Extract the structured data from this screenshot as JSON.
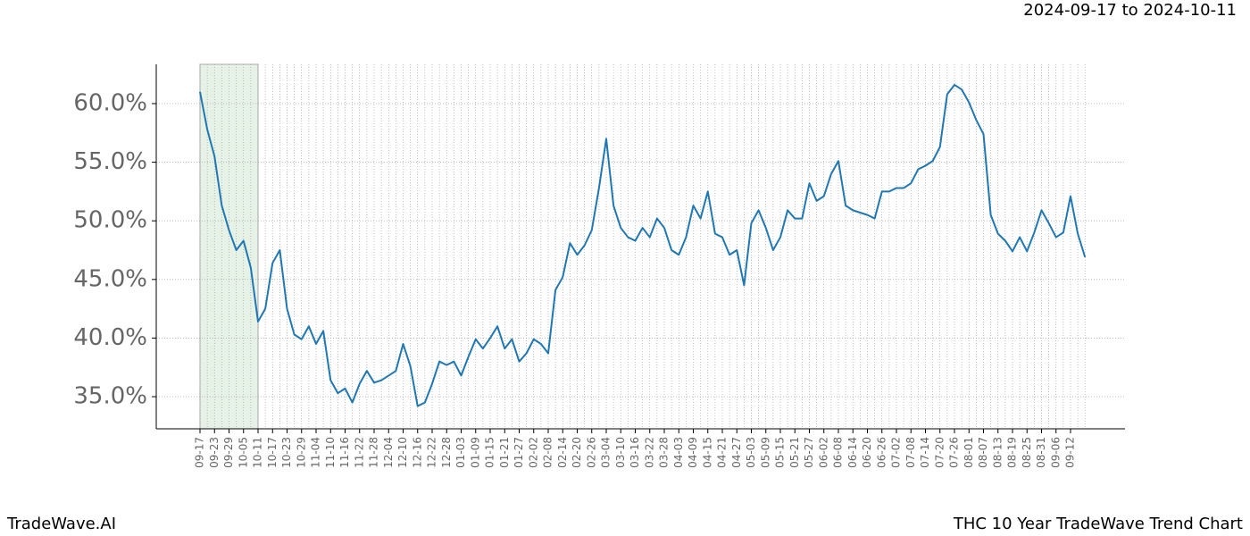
{
  "chart_data": {
    "type": "line",
    "title": "THC 10 Year TradeWave Trend Chart",
    "subtitle": "2024-09-17 to 2024-10-11",
    "brand": "TradeWave.AI",
    "categories": [
      "09-17",
      null,
      "09-23",
      null,
      "09-29",
      null,
      "10-05",
      null,
      "10-11",
      null,
      "10-17",
      null,
      "10-23",
      null,
      "10-29",
      null,
      "11-04",
      null,
      "11-10",
      null,
      "11-16",
      null,
      "11-22",
      null,
      "11-28",
      null,
      "12-04",
      null,
      "12-10",
      null,
      "12-16",
      null,
      "12-22",
      null,
      "12-28",
      null,
      "01-03",
      null,
      "01-09",
      null,
      "01-15",
      null,
      "01-21",
      null,
      "01-27",
      null,
      "02-02",
      null,
      "02-08",
      null,
      "02-14",
      null,
      "02-20",
      null,
      "02-26",
      null,
      "03-04",
      null,
      "03-10",
      null,
      "03-16",
      null,
      "03-22",
      null,
      "03-28",
      null,
      "04-03",
      null,
      "04-09",
      null,
      "04-15",
      null,
      "04-21",
      null,
      "04-27",
      null,
      "05-03",
      null,
      "05-09",
      null,
      "05-15",
      null,
      "05-21",
      null,
      "05-27",
      null,
      "06-02",
      null,
      "06-08",
      null,
      "06-14",
      null,
      "06-20",
      null,
      "06-26",
      null,
      "07-02",
      null,
      "07-08",
      null,
      "07-14",
      null,
      "07-20",
      null,
      "07-26",
      null,
      "08-01",
      null,
      "08-07",
      null,
      "08-13",
      null,
      "08-19",
      null,
      "08-25",
      null,
      "08-31",
      null,
      "09-06",
      null,
      "09-12",
      null,
      null
    ],
    "values": [
      61.0,
      57.8,
      55.5,
      51.3,
      49.2,
      47.5,
      48.3,
      46.0,
      41.4,
      42.5,
      46.4,
      47.5,
      42.5,
      40.3,
      39.9,
      41.0,
      39.5,
      40.6,
      36.4,
      35.3,
      35.7,
      34.5,
      36.1,
      37.2,
      36.2,
      36.4,
      36.8,
      37.2,
      39.5,
      37.6,
      34.2,
      34.5,
      36.1,
      38.0,
      37.7,
      38.0,
      36.8,
      38.4,
      39.9,
      39.1,
      40.0,
      41.0,
      39.1,
      39.9,
      38.0,
      38.7,
      39.9,
      39.5,
      38.7,
      44.1,
      45.2,
      48.1,
      47.1,
      47.9,
      49.2,
      52.8,
      57.0,
      51.3,
      49.4,
      48.6,
      48.3,
      49.4,
      48.6,
      50.2,
      49.4,
      47.5,
      47.1,
      48.6,
      51.3,
      50.2,
      52.5,
      48.9,
      48.6,
      47.1,
      47.5,
      44.5,
      49.8,
      50.9,
      49.4,
      47.5,
      48.6,
      50.9,
      50.2,
      50.2,
      53.2,
      51.7,
      52.1,
      54.0,
      55.1,
      51.3,
      50.9,
      50.7,
      50.5,
      50.2,
      52.5,
      52.5,
      52.8,
      52.8,
      53.2,
      54.4,
      54.7,
      55.1,
      56.3,
      60.8,
      61.6,
      61.2,
      60.1,
      58.6,
      57.4,
      50.5,
      48.9,
      48.3,
      47.4,
      48.6,
      47.4,
      49.0,
      50.9,
      49.8,
      48.6,
      49.0,
      52.1,
      48.9,
      46.9
    ],
    "color": "#1f77b4",
    "highlight_range": [
      "09-17",
      "10-11"
    ],
    "highlight_color": "#e5f2e5",
    "ylim": [
      32.26,
      63.35
    ],
    "yticks": [
      {
        "value": 35,
        "label": "35.0%"
      },
      {
        "value": 40,
        "label": "40.0%"
      },
      {
        "value": 45,
        "label": "45.0%"
      },
      {
        "value": 50,
        "label": "50.0%"
      },
      {
        "value": 55,
        "label": "55.0%"
      },
      {
        "value": 60,
        "label": "60.0%"
      }
    ],
    "grid": true
  }
}
